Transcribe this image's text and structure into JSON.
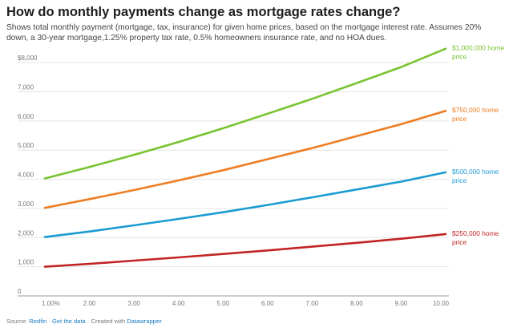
{
  "chart_data": {
    "type": "line",
    "title": "How do monthly payments change as mortgage rates change?",
    "subtitle": "Shows total monthly payment (mortgage, tax, insurance) for given home prices, based on the mortgage interest rate. Assumes 20% down, a 30-year mortgage,1.25% property tax rate, 0.5% homeowners insurance rate, and no HOA dues.",
    "xlabel": "",
    "ylabel": "",
    "xlim": [
      1,
      10
    ],
    "ylim": [
      0,
      8500
    ],
    "x_ticks": [
      {
        "value": 1,
        "label": "1.00%"
      },
      {
        "value": 2,
        "label": "2.00"
      },
      {
        "value": 3,
        "label": "3.00"
      },
      {
        "value": 4,
        "label": "4.00"
      },
      {
        "value": 5,
        "label": "5.00"
      },
      {
        "value": 6,
        "label": "6.00"
      },
      {
        "value": 7,
        "label": "7.00"
      },
      {
        "value": 8,
        "label": "8.00"
      },
      {
        "value": 9,
        "label": "9.00"
      },
      {
        "value": 10,
        "label": "10.00"
      }
    ],
    "y_ticks": [
      {
        "value": 0,
        "label": "0"
      },
      {
        "value": 1000,
        "label": "1,000"
      },
      {
        "value": 2000,
        "label": "2,000"
      },
      {
        "value": 3000,
        "label": "3,000"
      },
      {
        "value": 4000,
        "label": "4,000"
      },
      {
        "value": 5000,
        "label": "5,000"
      },
      {
        "value": 6000,
        "label": "6,000"
      },
      {
        "value": 7000,
        "label": "7,000"
      },
      {
        "value": 8000,
        "label": "$8,000"
      }
    ],
    "grid": true,
    "x": [
      1,
      2,
      3,
      4,
      5,
      6,
      7,
      8,
      9,
      10
    ],
    "series": [
      {
        "name": "$1,000,000 home price",
        "color": "#78c32f",
        "values": [
          4030,
          4420,
          4840,
          5280,
          5750,
          6250,
          6760,
          7300,
          7850,
          8480
        ]
      },
      {
        "name": "$750,000 home price",
        "color": "#ef7d22",
        "values": [
          3020,
          3320,
          3630,
          3960,
          4310,
          4690,
          5070,
          5480,
          5890,
          6350
        ]
      },
      {
        "name": "$500,000 home price",
        "color": "#1b9bd1",
        "values": [
          2020,
          2210,
          2420,
          2640,
          2870,
          3120,
          3380,
          3650,
          3920,
          4240
        ]
      },
      {
        "name": "$250,000 home price",
        "color": "#c22424",
        "values": [
          1000,
          1100,
          1210,
          1320,
          1440,
          1560,
          1690,
          1820,
          1960,
          2120
        ]
      }
    ]
  },
  "footer": {
    "source_prefix": "Source: ",
    "source_link": "Redfin",
    "sep1": " · ",
    "get_data": "Get the data",
    "sep2": " · Created with ",
    "made_with": "Datawrapper"
  }
}
